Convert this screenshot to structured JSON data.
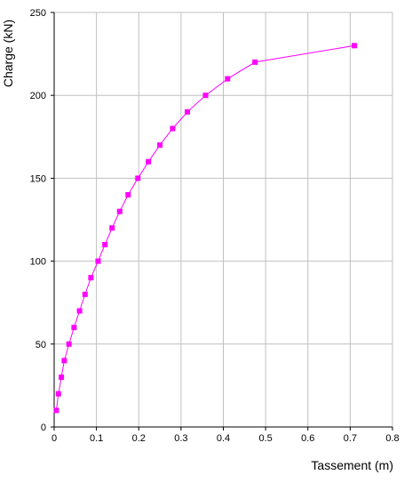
{
  "chart_data": {
    "type": "line",
    "title": "",
    "xlabel": "Tassement (m)",
    "ylabel": "Charge  (kN)",
    "xlim": [
      0,
      0.8
    ],
    "ylim": [
      0,
      250
    ],
    "x_ticks": [
      "0",
      "0.1",
      "0.2",
      "0.3",
      "0.4",
      "0.5",
      "0.6",
      "0.7",
      "0.8"
    ],
    "y_ticks": [
      "0",
      "50",
      "100",
      "150",
      "200",
      "250"
    ],
    "grid": true,
    "legend": false,
    "colors": {
      "series": "#ff00ff",
      "grid": "#c0c0c0",
      "axis": "#000000"
    },
    "series": [
      {
        "marker": "square",
        "x": [
          0.005,
          0.01,
          0.017,
          0.024,
          0.035,
          0.047,
          0.06,
          0.073,
          0.087,
          0.104,
          0.12,
          0.137,
          0.155,
          0.175,
          0.198,
          0.223,
          0.25,
          0.28,
          0.315,
          0.358,
          0.41,
          0.475,
          0.71
        ],
        "y": [
          10,
          20,
          30,
          40,
          50,
          60,
          70,
          80,
          90,
          100,
          110,
          120,
          130,
          140,
          150,
          160,
          170,
          180,
          190,
          200,
          210,
          220,
          230
        ]
      }
    ]
  }
}
